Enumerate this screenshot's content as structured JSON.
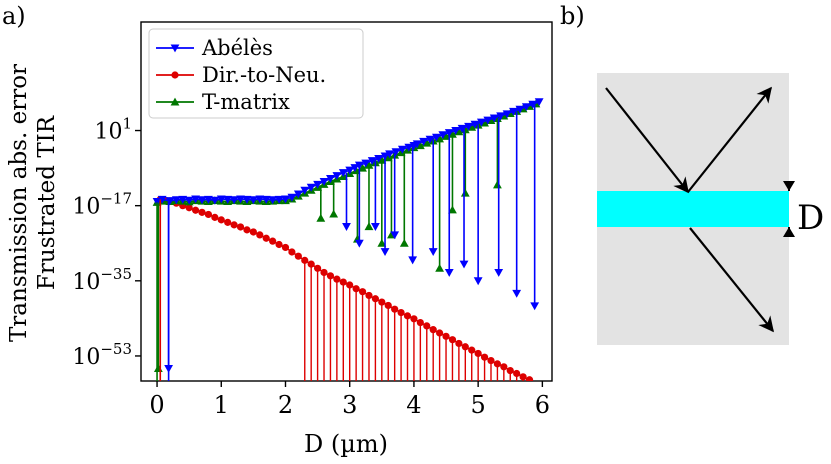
{
  "panels": {
    "a": "a)",
    "b": "b)"
  },
  "chart_data": {
    "type": "line",
    "title": "",
    "ylabel_lines": [
      "Transmission abs. error",
      "Frustrated TIR"
    ],
    "xlabel": "D (µm)",
    "xlim": [
      -0.25,
      6.15
    ],
    "ylim_log10": [
      -59,
      27
    ],
    "yscale": "log",
    "x_ticks": [
      0,
      1,
      2,
      3,
      4,
      5,
      6
    ],
    "y_ticks": [
      {
        "base": "10",
        "exp": "1",
        "log10": 1
      },
      {
        "base": "10",
        "exp": "−17",
        "log10": -17
      },
      {
        "base": "10",
        "exp": "−35",
        "log10": -35
      },
      {
        "base": "10",
        "exp": "−53",
        "log10": -53
      }
    ],
    "legend_position": "top-left",
    "series": [
      {
        "name": "Abélès",
        "color": "#0000ff",
        "marker": "triangle-down",
        "x": [
          0.0,
          0.08,
          0.2,
          0.3,
          0.4,
          0.5,
          0.6,
          0.7,
          0.8,
          0.9,
          1.0,
          1.1,
          1.2,
          1.3,
          1.4,
          1.5,
          1.6,
          1.7,
          1.8,
          1.9,
          2.0,
          2.1,
          2.2,
          2.3,
          2.4,
          2.5,
          2.6,
          2.7,
          2.8,
          2.9,
          3.0,
          3.08,
          3.15,
          3.25,
          3.35,
          3.45,
          3.55,
          3.62,
          3.72,
          3.82,
          3.92,
          4.0,
          4.05,
          4.15,
          4.25,
          4.35,
          4.45,
          4.55,
          4.65,
          4.75,
          4.85,
          4.95,
          5.05,
          5.15,
          5.25,
          5.35,
          5.45,
          5.55,
          5.65,
          5.75,
          5.85,
          5.95
        ],
        "log10": [
          -16,
          -15.5,
          -15.8,
          -15.6,
          -15.5,
          -15.7,
          -15.4,
          -15.6,
          -15.5,
          -15.7,
          -15.4,
          -15.5,
          -15.6,
          -15.4,
          -15.5,
          -15.6,
          -15.4,
          -15.5,
          -15.6,
          -15.5,
          -15.4,
          -15.0,
          -14.2,
          -13.3,
          -12.6,
          -11.9,
          -11.2,
          -10.5,
          -9.8,
          -9.1,
          -8.5,
          -7.9,
          -7.3,
          -6.8,
          -6.2,
          -5.7,
          -5.1,
          -4.6,
          -4.1,
          -3.5,
          -3.0,
          -2.6,
          -2.2,
          -1.6,
          -1.1,
          -0.6,
          0.0,
          0.5,
          1.0,
          1.5,
          2.0,
          2.5,
          3.0,
          3.5,
          4.0,
          4.5,
          5.0,
          5.6,
          6.1,
          6.7,
          7.3,
          7.9
        ],
        "dips": [
          [
            0.18,
            -56
          ],
          [
            2.95,
            -22
          ],
          [
            3.15,
            -26
          ],
          [
            3.4,
            -22
          ],
          [
            3.55,
            -28
          ],
          [
            3.7,
            -24
          ],
          [
            3.98,
            -30
          ],
          [
            4.3,
            -28
          ],
          [
            4.55,
            -33
          ],
          [
            4.78,
            -31
          ],
          [
            5.0,
            -35
          ],
          [
            5.32,
            -33
          ],
          [
            5.6,
            -38
          ],
          [
            5.88,
            -41
          ]
        ]
      },
      {
        "name": "Dir.-to-Neu.",
        "color": "#dd0000",
        "marker": "circle",
        "x": [
          0.05,
          0.1,
          0.15,
          0.2,
          0.3,
          0.4,
          0.5,
          0.6,
          0.7,
          0.8,
          0.9,
          1.0,
          1.1,
          1.2,
          1.3,
          1.4,
          1.5,
          1.6,
          1.7,
          1.8,
          1.9,
          2.0,
          2.1,
          2.2,
          2.3,
          2.4,
          2.5,
          2.6,
          2.7,
          2.8,
          2.9,
          3.0,
          3.1,
          3.2,
          3.3,
          3.4,
          3.5,
          3.6,
          3.7,
          3.8,
          3.9,
          4.0,
          4.1,
          4.2,
          4.3,
          4.4,
          4.5,
          4.6,
          4.7,
          4.8,
          4.9,
          5.0,
          5.1,
          5.2,
          5.3,
          5.4,
          5.5,
          5.6,
          5.7,
          5.8
        ],
        "log10": [
          -15.5,
          -15.6,
          -15.8,
          -16.0,
          -16.4,
          -17.0,
          -17.5,
          -18.1,
          -18.6,
          -19.1,
          -19.8,
          -20.4,
          -21.0,
          -21.6,
          -22.1,
          -22.8,
          -23.3,
          -24.0,
          -24.8,
          -25.5,
          -26.3,
          -27.0,
          -28.1,
          -29.1,
          -30.1,
          -31.0,
          -32.0,
          -33.0,
          -33.8,
          -34.6,
          -35.3,
          -36.0,
          -36.9,
          -37.6,
          -38.5,
          -39.3,
          -40.1,
          -40.9,
          -41.8,
          -42.6,
          -43.4,
          -44.1,
          -45.0,
          -45.8,
          -46.7,
          -47.5,
          -48.3,
          -49.1,
          -50.0,
          -50.8,
          -51.6,
          -52.4,
          -53.3,
          -54.1,
          -54.9,
          -55.6,
          -56.5,
          -57.2,
          -58.0,
          -58.7
        ],
        "drops_from_x": 2.25
      },
      {
        "name": "T-matrix",
        "color": "#007700",
        "marker": "triangle-up",
        "x": [
          0.0,
          0.1,
          0.2,
          0.3,
          0.4,
          0.5,
          0.6,
          0.7,
          0.8,
          0.9,
          1.0,
          1.1,
          1.2,
          1.3,
          1.4,
          1.5,
          1.6,
          1.7,
          1.8,
          1.9,
          2.0,
          2.1,
          2.2,
          2.3,
          2.4,
          2.5,
          2.6,
          2.7,
          2.8,
          2.9,
          3.0,
          3.1,
          3.2,
          3.3,
          3.4,
          3.5,
          3.6,
          3.7,
          3.8,
          3.9,
          4.0,
          4.1,
          4.2,
          4.3,
          4.4,
          4.5,
          4.6,
          4.7,
          4.8,
          4.9,
          5.0,
          5.1,
          5.2,
          5.3,
          5.4,
          5.5,
          5.6,
          5.7,
          5.8,
          5.9
        ],
        "log10": [
          -16.2,
          -15.9,
          -16.0,
          -15.8,
          -15.9,
          -16.1,
          -15.8,
          -15.9,
          -16.0,
          -15.8,
          -15.9,
          -16.0,
          -15.8,
          -15.9,
          -16.0,
          -15.8,
          -15.9,
          -16.0,
          -15.9,
          -15.8,
          -15.8,
          -15.4,
          -14.7,
          -14.0,
          -13.3,
          -12.6,
          -11.9,
          -11.2,
          -10.6,
          -10.0,
          -9.3,
          -8.6,
          -8.0,
          -7.3,
          -6.7,
          -6.1,
          -5.5,
          -4.9,
          -4.3,
          -3.7,
          -3.1,
          -2.6,
          -2.0,
          -1.5,
          -1.0,
          -0.4,
          0.1,
          0.7,
          1.2,
          1.8,
          2.3,
          2.8,
          3.4,
          3.9,
          4.5,
          5.1,
          5.6,
          6.2,
          6.8,
          7.4
        ],
        "dips": [
          [
            0.02,
            -56
          ],
          [
            2.55,
            -20
          ],
          [
            2.75,
            -19
          ],
          [
            3.12,
            -25
          ],
          [
            3.3,
            -22
          ],
          [
            3.5,
            -26
          ],
          [
            3.65,
            -24
          ],
          [
            3.85,
            -26
          ],
          [
            4.4,
            -32
          ],
          [
            4.6,
            -18
          ],
          [
            4.8,
            -14
          ],
          [
            5.3,
            -12
          ]
        ]
      }
    ]
  },
  "diagram": {
    "label": "D",
    "background": "#e3e3e3",
    "layer_color": "#00ffff"
  }
}
